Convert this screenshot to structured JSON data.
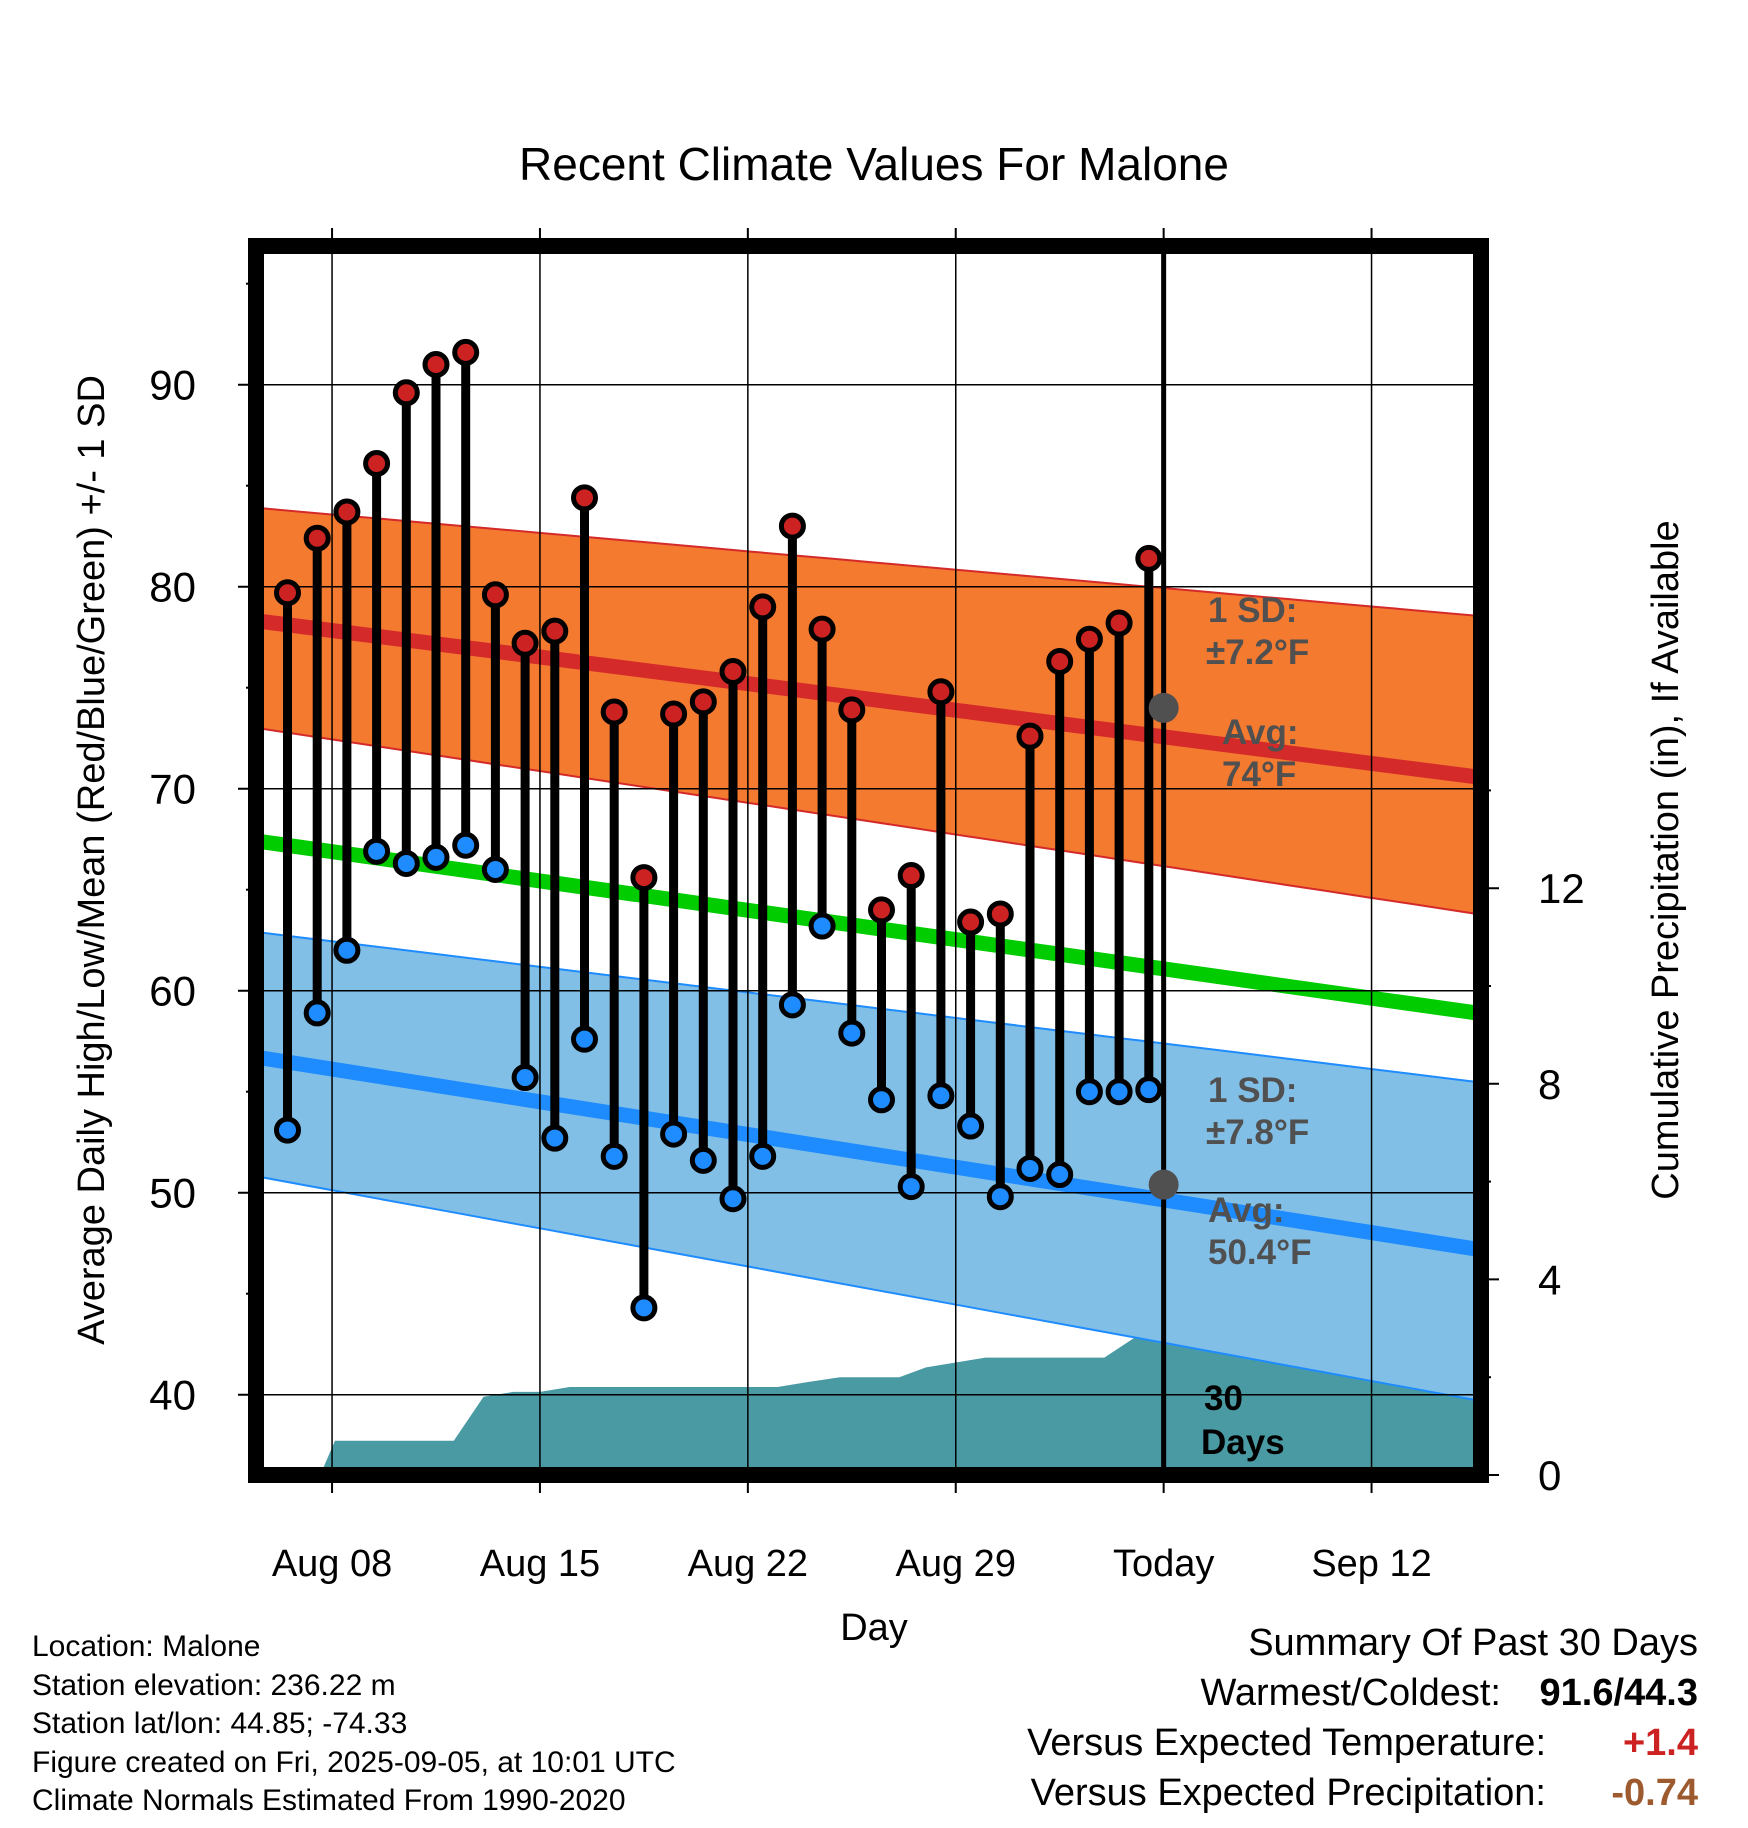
{
  "chart_data": {
    "type": "line",
    "title": "Recent Climate Values For Malone",
    "xlabel": "Day",
    "ylabel": "Average Daily High/Low/Mean (Red/Blue/Green) +/- 1 SD",
    "ylabel_right": "Cumulative Precipitation (in), If Available",
    "ylim": [
      36.5,
      97
    ],
    "ylim_right": [
      0,
      28.7
    ],
    "yticks": [
      40,
      50,
      60,
      70,
      80,
      90
    ],
    "yticks_right": [
      0,
      4,
      8,
      12
    ],
    "xlim": [
      0,
      41.5
    ],
    "xticks": [
      {
        "x": 2.5,
        "label": "Aug 08"
      },
      {
        "x": 9.5,
        "label": "Aug 15"
      },
      {
        "x": 16.5,
        "label": "Aug 22"
      },
      {
        "x": 23.5,
        "label": "Aug 29"
      },
      {
        "x": 30.5,
        "label": "Today"
      },
      {
        "x": 37.5,
        "label": "Sep 12"
      }
    ],
    "grid": true,
    "days": [
      1,
      2,
      3,
      4,
      5,
      6,
      7,
      8,
      9,
      10,
      11,
      12,
      13,
      14,
      15,
      16,
      17,
      18,
      19,
      20,
      21,
      22,
      23,
      24,
      25,
      26,
      27,
      28,
      29,
      30
    ],
    "highs": [
      79.7,
      82.4,
      83.7,
      86.1,
      89.6,
      91.0,
      91.6,
      79.6,
      77.2,
      77.8,
      84.4,
      73.8,
      65.6,
      73.7,
      74.3,
      75.8,
      79.0,
      83.0,
      77.9,
      73.9,
      64.0,
      65.7,
      74.8,
      63.4,
      63.8,
      72.6,
      76.3,
      77.4,
      78.2,
      81.4
    ],
    "lows": [
      53.1,
      58.9,
      62.0,
      66.9,
      66.3,
      66.6,
      67.2,
      66.0,
      55.7,
      52.7,
      57.6,
      51.8,
      44.3,
      52.9,
      51.6,
      49.7,
      51.8,
      59.3,
      63.2,
      57.9,
      54.6,
      50.3,
      54.8,
      53.3,
      49.8,
      51.2,
      50.9,
      55.0,
      55.0,
      55.1
    ],
    "normal_x": [
      0,
      41.5
    ],
    "normal_high_avg": [
      78.3,
      70.5
    ],
    "normal_high_upper": [
      83.9,
      78.5
    ],
    "normal_high_lower": [
      73.0,
      63.7
    ],
    "normal_mean": [
      67.4,
      58.8
    ],
    "normal_low_avg": [
      56.7,
      47.1
    ],
    "normal_low_upper": [
      62.9,
      55.4
    ],
    "normal_low_lower": [
      50.8,
      39.6
    ],
    "today_x": 30.5,
    "today_high_avg": 74.0,
    "today_low_avg": 50.4,
    "precip_x": [
      2.1,
      2.6,
      6.6,
      7.6,
      8.6,
      9.5,
      10.5,
      11.5,
      17.5,
      18.5,
      19.6,
      21.6,
      22.5,
      24.5,
      25.5,
      28.5,
      29.5,
      41.5
    ],
    "precip_values": [
      0.0,
      0.7,
      0.7,
      1.6,
      1.7,
      1.7,
      1.8,
      1.8,
      1.8,
      1.9,
      2.0,
      2.0,
      2.2,
      2.4,
      2.4,
      2.4,
      2.8,
      2.8
    ],
    "annotations": {
      "high_sd_1": "1 SD:",
      "high_sd_2": "±7.2°F",
      "high_avg_1": "Avg:",
      "high_avg_2": "74°F",
      "low_sd_1": "1 SD:",
      "low_sd_2": "±7.8°F",
      "low_avg_1": "Avg:",
      "low_avg_2": "50.4°F",
      "days_1": "30",
      "days_2": "Days"
    },
    "colors": {
      "high_band": "#f47a30",
      "high_line": "#d42a2a",
      "mean_line": "#00cc00",
      "low_band": "#82bfe6",
      "low_line": "#1e8cff",
      "precip": "#4a9aa3",
      "high_marker": "#cc2222",
      "low_marker": "#1e8cff",
      "annotation": "#505050"
    }
  },
  "info": {
    "location": "Location: Malone",
    "elevation": "Station elevation: 236.22 m",
    "latlon": "Station lat/lon: 44.85; -74.33",
    "created": "Figure created on Fri, 2025-09-05, at 10:01 UTC",
    "normals": "Climate Normals Estimated From 1990-2020"
  },
  "summary": {
    "heading": "Summary Of Past 30 Days",
    "warm_cold_label": "Warmest/Coldest:",
    "warm_cold_value": "91.6/44.3",
    "temp_label": "Versus Expected Temperature:",
    "temp_value": "+1.4",
    "precip_label": "Versus Expected Precipitation:",
    "precip_value": "-0.74"
  }
}
